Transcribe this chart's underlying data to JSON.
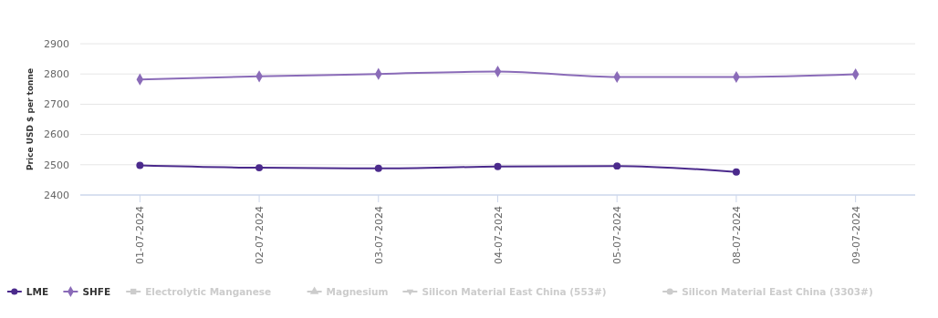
{
  "chart_data": {
    "type": "line",
    "ylabel": "Price USD  $ per tonne",
    "categories": [
      "01-07-2024",
      "02-07-2024",
      "03-07-2024",
      "04-07-2024",
      "05-07-2024",
      "08-07-2024",
      "09-07-2024"
    ],
    "series": [
      {
        "name": "LME",
        "color": "#4b2a8c",
        "marker": "circle",
        "values": [
          2498,
          2490,
          2488,
          2494,
          2496,
          2476,
          null
        ]
      },
      {
        "name": "SHFE",
        "color": "#8a6bb8",
        "marker": "diamond",
        "values": [
          2782,
          2792,
          2800,
          2808,
          2790,
          2790,
          2799
        ]
      },
      {
        "name": "Electrolytic Manganese",
        "color": "#cccccc",
        "marker": "square",
        "values": [
          null,
          null,
          null,
          null,
          null,
          null,
          null
        ]
      },
      {
        "name": "Magnesium",
        "color": "#cccccc",
        "marker": "triangle",
        "values": [
          null,
          null,
          null,
          null,
          null,
          null,
          null
        ]
      },
      {
        "name": "Silicon Material East China (553#)",
        "color": "#cccccc",
        "marker": "triangle-down",
        "values": [
          null,
          null,
          null,
          null,
          null,
          null,
          null
        ]
      },
      {
        "name": "Silicon Material East China (3303#)",
        "color": "#cccccc",
        "marker": "circle",
        "values": [
          null,
          null,
          null,
          null,
          null,
          null,
          null
        ]
      }
    ],
    "ylim": [
      2400,
      2900
    ],
    "yticks": [
      2400,
      2500,
      2600,
      2700,
      2800,
      2900
    ],
    "grid": "y",
    "legend": "bottom",
    "line_style": "solid"
  }
}
